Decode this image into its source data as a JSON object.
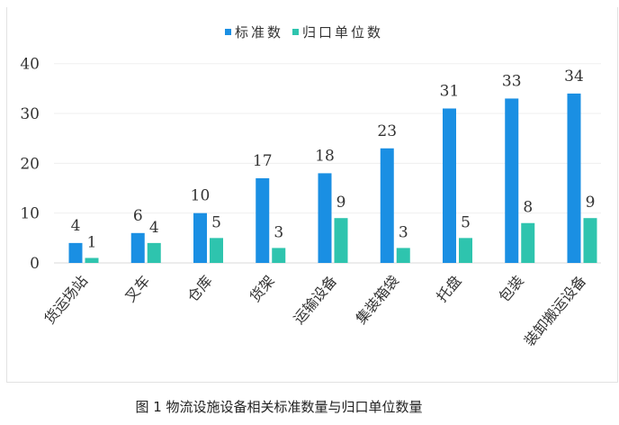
{
  "chart_data": {
    "type": "bar",
    "title": "",
    "xlabel": "",
    "ylabel": "",
    "categories": [
      "货运场站",
      "叉车",
      "仓库",
      "货架",
      "运输设备",
      "集装箱袋",
      "托盘",
      "包装",
      "装卸搬运设备"
    ],
    "series": [
      {
        "name": "标准数",
        "values": [
          4,
          6,
          10,
          17,
          18,
          23,
          31,
          33,
          34
        ],
        "color": "#1a8fe3"
      },
      {
        "name": "归口单位数",
        "values": [
          1,
          4,
          5,
          3,
          9,
          3,
          5,
          8,
          9
        ],
        "color": "#2ec4ae"
      }
    ],
    "ylim": [
      0,
      40
    ],
    "yticks": [
      0,
      10,
      20,
      30,
      40
    ],
    "grid": true,
    "legend": "top",
    "data_labels": true
  },
  "caption": "图 1 物流设施设备相关标准数量与归口单位数量"
}
